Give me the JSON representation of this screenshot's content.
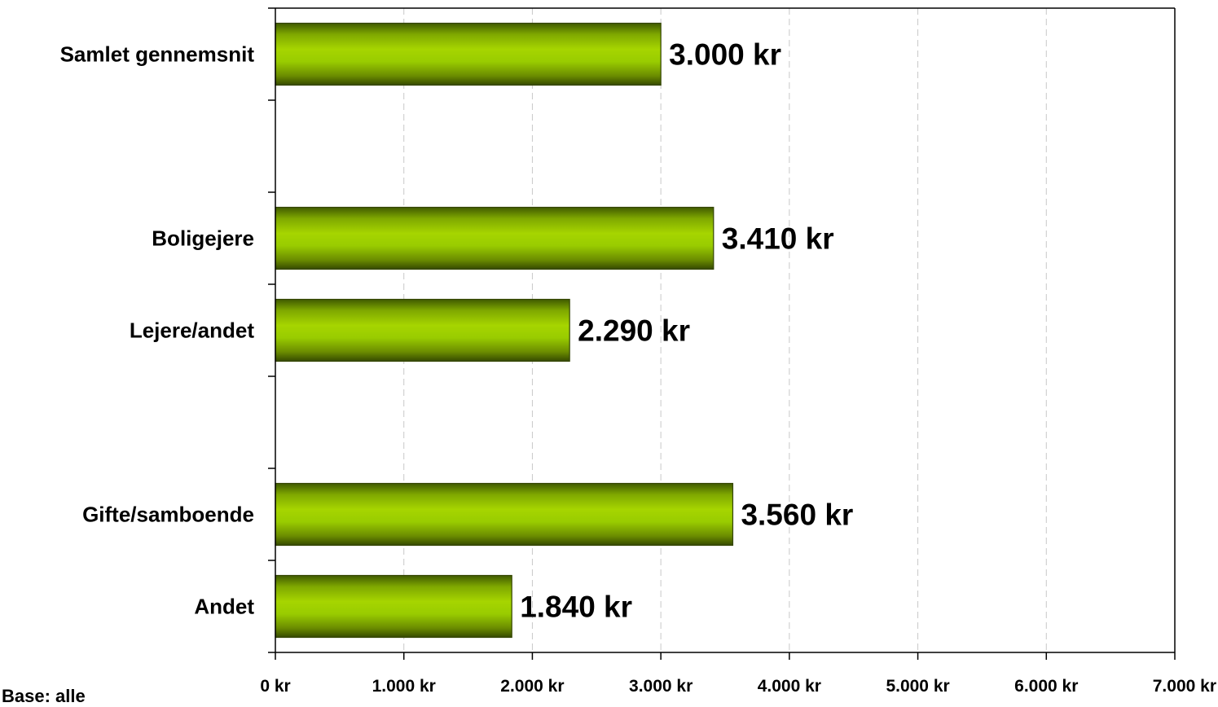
{
  "chart_data": {
    "type": "bar",
    "orientation": "horizontal",
    "slots": [
      "Samlet gennemsnit",
      "",
      "Boligejere",
      "Lejere/andet",
      "",
      "Gifte/samboende",
      "Andet"
    ],
    "categories": [
      "Samlet gennemsnit",
      "Boligejere",
      "Lejere/andet",
      "Gifte/samboende",
      "Andet"
    ],
    "values": [
      3000,
      3410,
      2290,
      3560,
      1840
    ],
    "value_labels": [
      "3.000 kr",
      "3.410 kr",
      "2.290 kr",
      "3.560 kr",
      "1.840 kr"
    ],
    "x_ticks": [
      0,
      1000,
      2000,
      3000,
      4000,
      5000,
      6000,
      7000
    ],
    "x_tick_labels": [
      "0 kr",
      "1.000 kr",
      "2.000 kr",
      "3.000 kr",
      "4.000 kr",
      "5.000 kr",
      "6.000 kr",
      "7.000 kr"
    ],
    "xlim": [
      0,
      7000
    ],
    "grid": "vertical dashed",
    "bar_color": "#99cc00",
    "bar_edge_color": "#334400",
    "title": "",
    "xlabel": "",
    "ylabel": ""
  },
  "footnote": "Base: alle"
}
